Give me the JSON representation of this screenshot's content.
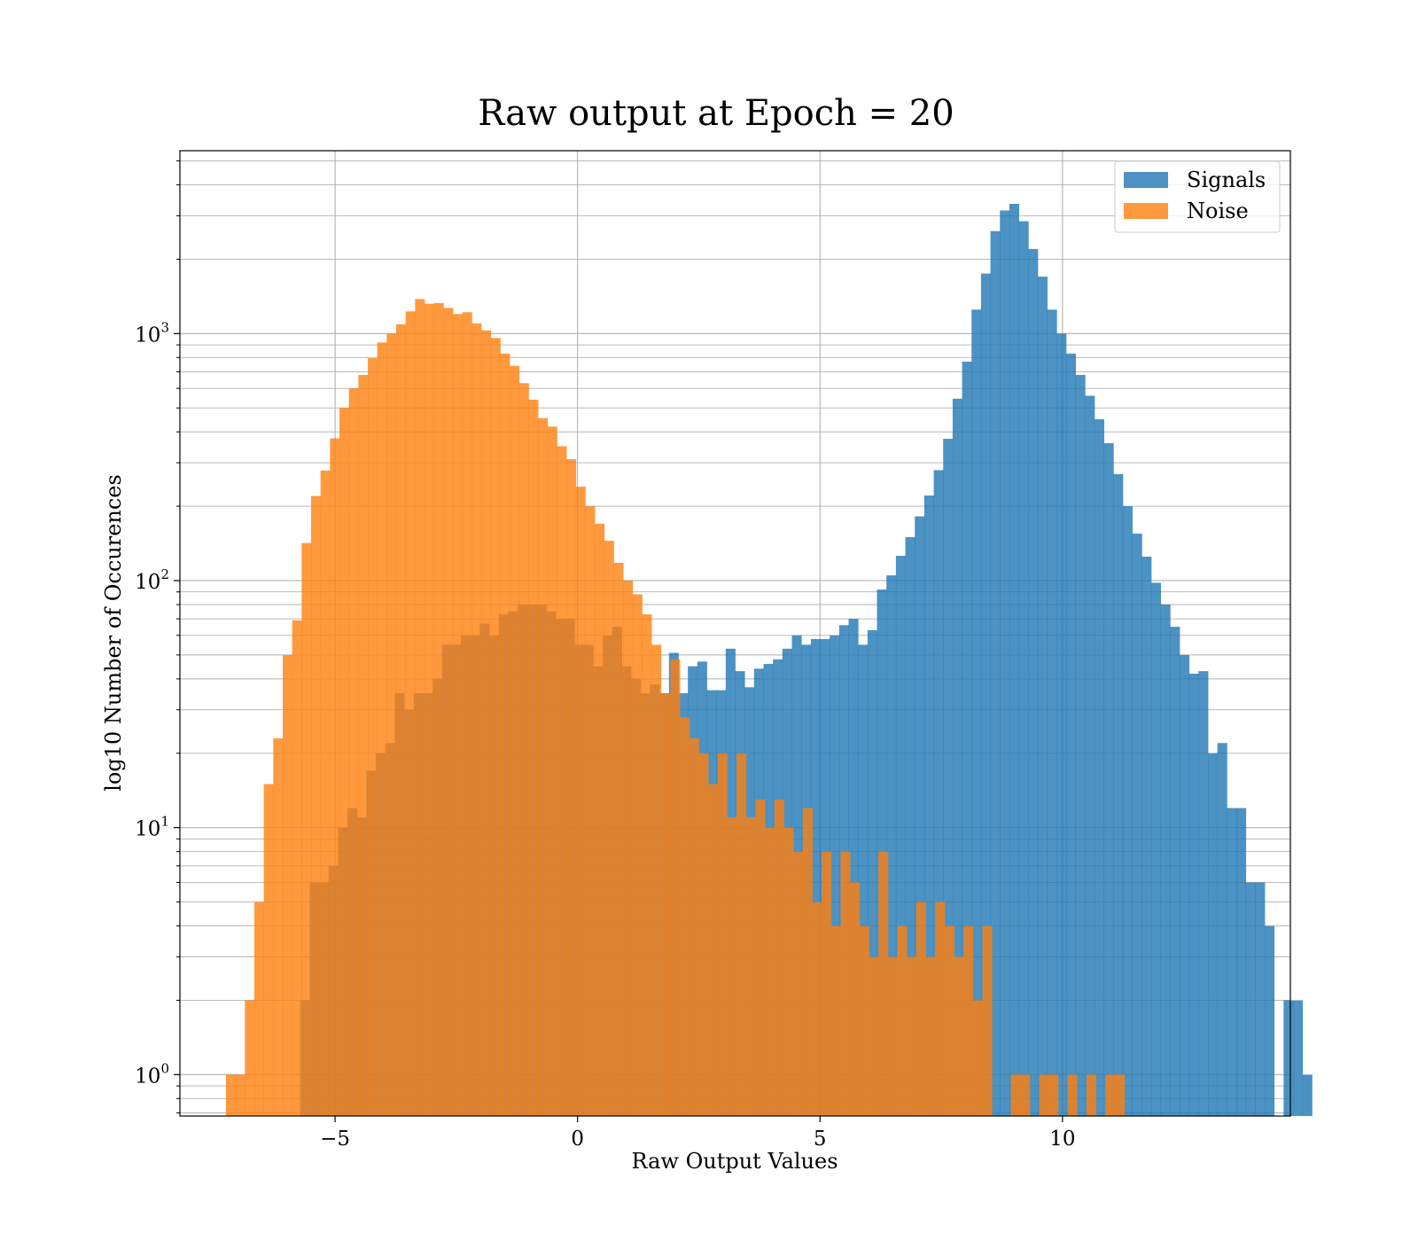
{
  "chart_data": {
    "type": "bar",
    "title": "Raw output at Epoch = 20",
    "xlabel": "Raw Output Values",
    "ylabel": "log10 Number of Occurences",
    "xscale": "linear",
    "yscale": "log",
    "xlim": [
      -8.2,
      14.7
    ],
    "ylim": [
      0.68,
      5500
    ],
    "xticks": [
      -5,
      0,
      5,
      10
    ],
    "xtick_labels": [
      "−5",
      "0",
      "5",
      "10"
    ],
    "yticks": [
      {
        "value": 1,
        "base": "10",
        "exp": "0"
      },
      {
        "value": 10,
        "base": "10",
        "exp": "1"
      },
      {
        "value": 100,
        "base": "10",
        "exp": "2"
      },
      {
        "value": 1000,
        "base": "10",
        "exp": "3"
      }
    ],
    "grid": true,
    "legend_position": "upper-right",
    "bin_width": 0.195,
    "series": [
      {
        "name": "Signals",
        "color": "#1f77b4",
        "opacity": 0.8,
        "x_start": -5.72,
        "counts": [
          2,
          6,
          6,
          7,
          10,
          12,
          11,
          17,
          20,
          22,
          35,
          30,
          35,
          35,
          40,
          55,
          55,
          60,
          60,
          67,
          60,
          73,
          75,
          80,
          80,
          80,
          75,
          70,
          70,
          55,
          55,
          45,
          60,
          65,
          45,
          40,
          35,
          38,
          35,
          51,
          35,
          45,
          47,
          36,
          36,
          53,
          43,
          37,
          44,
          46,
          48,
          53,
          60,
          55,
          58,
          58,
          60,
          66,
          70,
          55,
          63,
          92,
          105,
          126,
          150,
          182,
          221,
          280,
          375,
          545,
          770,
          1250,
          1750,
          2600,
          3150,
          3350,
          2850,
          2200,
          1700,
          1250,
          1000,
          830,
          680,
          560,
          450,
          360,
          270,
          200,
          155,
          125,
          98,
          80,
          65,
          50,
          42,
          43,
          20,
          22,
          12,
          12,
          6,
          6,
          4,
          0,
          2,
          2,
          1
        ]
      },
      {
        "name": "Noise",
        "color": "#ff7f0e",
        "opacity": 0.8,
        "x_start": -7.25,
        "counts": [
          1,
          1,
          2,
          5,
          15,
          23,
          50,
          69,
          142,
          220,
          279,
          376,
          500,
          600,
          680,
          795,
          920,
          1000,
          1090,
          1230,
          1380,
          1320,
          1330,
          1270,
          1200,
          1220,
          1100,
          1030,
          960,
          830,
          740,
          630,
          540,
          455,
          420,
          350,
          310,
          240,
          200,
          170,
          145,
          118,
          100,
          88,
          73,
          55,
          35,
          48,
          28,
          23,
          20,
          15,
          20,
          11,
          20,
          11,
          13,
          10,
          13,
          10,
          8,
          12,
          5,
          8,
          4,
          8,
          6,
          4,
          3,
          8,
          3,
          4,
          3,
          5,
          3,
          5,
          4,
          3,
          4,
          2,
          4,
          0,
          0,
          1,
          1,
          0,
          1,
          1,
          0,
          1,
          0,
          1,
          0,
          1,
          1
        ]
      }
    ]
  }
}
